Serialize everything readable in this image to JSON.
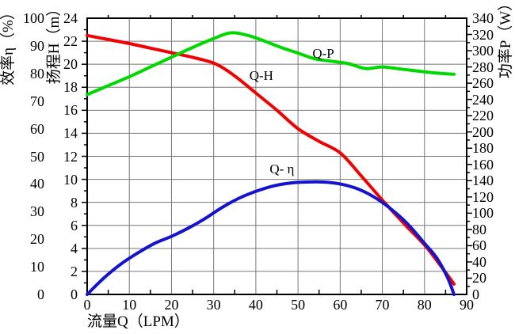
{
  "colors": {
    "background": "#ffffff",
    "axis": "#000000",
    "grid": "#777777",
    "text": "#000000",
    "curve_qh": "#ee0202",
    "curve_qp": "#00d800",
    "curve_qeta": "#1414cc"
  },
  "chart_data": {
    "type": "line",
    "grid": true,
    "legend": "inline-labels",
    "xlabel": "流量Q（LPM）",
    "x_axis": {
      "lim": [
        0,
        90
      ],
      "ticks": [
        0,
        10,
        20,
        30,
        40,
        50,
        60,
        70,
        80,
        90
      ],
      "minor_step": 5
    },
    "axes": {
      "efficiency": {
        "label": "效率η（%）",
        "lim": [
          0,
          100
        ],
        "ticks": [
          0,
          10,
          20,
          30,
          40,
          50,
          60,
          70,
          80,
          90,
          100
        ]
      },
      "head": {
        "label": "扬程H（m）",
        "lim": [
          0,
          24
        ],
        "ticks": [
          0,
          2,
          4,
          6,
          8,
          10,
          12,
          14,
          16,
          18,
          20,
          22,
          24
        ]
      },
      "power": {
        "label": "功率P（W）",
        "lim": [
          0,
          340
        ],
        "ticks": [
          0,
          20,
          40,
          60,
          80,
          100,
          120,
          140,
          160,
          180,
          200,
          220,
          240,
          260,
          280,
          300,
          320,
          340
        ]
      }
    },
    "series": [
      {
        "name": "Q-H",
        "axis": "head",
        "color": "#ee0202",
        "label": {
          "text": "Q-H",
          "q": 41.3,
          "v": 19.0
        },
        "points": [
          [
            0,
            22.5
          ],
          [
            5,
            22.15
          ],
          [
            10,
            21.8
          ],
          [
            15,
            21.4
          ],
          [
            20,
            21.0
          ],
          [
            25,
            20.6
          ],
          [
            30,
            20.1
          ],
          [
            33,
            19.5
          ],
          [
            36,
            18.7
          ],
          [
            40,
            17.5
          ],
          [
            45,
            16.0
          ],
          [
            50,
            14.4
          ],
          [
            55,
            13.3
          ],
          [
            60,
            12.3
          ],
          [
            65,
            10.3
          ],
          [
            70,
            8.2
          ],
          [
            75,
            6.2
          ],
          [
            80,
            4.3
          ],
          [
            84,
            2.4
          ],
          [
            87,
            0.9
          ]
        ]
      },
      {
        "name": "Q-P",
        "axis": "power",
        "color": "#00d800",
        "label": {
          "text": "Q-P",
          "q": 56.0,
          "v": 296
        },
        "points": [
          [
            0,
            246
          ],
          [
            5,
            257
          ],
          [
            10,
            268
          ],
          [
            15,
            280
          ],
          [
            20,
            292
          ],
          [
            25,
            304
          ],
          [
            30,
            315
          ],
          [
            34,
            322
          ],
          [
            38,
            319
          ],
          [
            42,
            312
          ],
          [
            46,
            304
          ],
          [
            50,
            297
          ],
          [
            54,
            290
          ],
          [
            58,
            287
          ],
          [
            62,
            284
          ],
          [
            66,
            278
          ],
          [
            70,
            280
          ],
          [
            75,
            277
          ],
          [
            80,
            274
          ],
          [
            84,
            272
          ],
          [
            87,
            271
          ]
        ]
      },
      {
        "name": "Q-η",
        "axis": "efficiency",
        "color": "#1414cc",
        "label": {
          "text": "Q- η",
          "q": 46.2,
          "v": 45.3
        },
        "points": [
          [
            0,
            0
          ],
          [
            4,
            6
          ],
          [
            8,
            11
          ],
          [
            12,
            15
          ],
          [
            16,
            18.5
          ],
          [
            20,
            21
          ],
          [
            24,
            24
          ],
          [
            28,
            27.5
          ],
          [
            32,
            31.5
          ],
          [
            36,
            34.8
          ],
          [
            40,
            37.3
          ],
          [
            44,
            39.2
          ],
          [
            48,
            40.3
          ],
          [
            52,
            40.7
          ],
          [
            56,
            40.7
          ],
          [
            60,
            40
          ],
          [
            64,
            38.3
          ],
          [
            68,
            35.3
          ],
          [
            72,
            31
          ],
          [
            76,
            25.5
          ],
          [
            80,
            18.5
          ],
          [
            83,
            13
          ],
          [
            85.5,
            6
          ],
          [
            87,
            0
          ]
        ]
      }
    ]
  }
}
